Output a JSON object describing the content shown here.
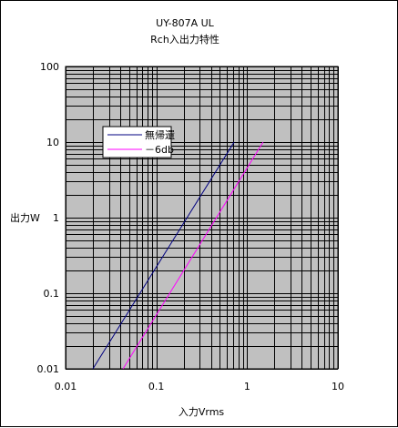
{
  "chart_data": {
    "type": "line",
    "title": "UY-807A UL",
    "subtitle": "Rch入出力特性",
    "xlabel": "入力Vrms",
    "ylabel": "出力W",
    "x_scale": "log",
    "y_scale": "log",
    "xlim": [
      0.01,
      10
    ],
    "ylim": [
      0.01,
      100
    ],
    "x_ticks": [
      "0.01",
      "0.1",
      "1",
      "10"
    ],
    "y_ticks": [
      "0.01",
      "0.1",
      "1",
      "10",
      "100"
    ],
    "grid": true,
    "legend_position": "upper-left",
    "plot_background": "#c0c0c0",
    "series": [
      {
        "name": "無帰還",
        "color": "#000080",
        "x": [
          0.02,
          0.72
        ],
        "y": [
          0.01,
          10
        ]
      },
      {
        "name": "－6db",
        "color": "#ff00ff",
        "x": [
          0.043,
          1.5
        ],
        "y": [
          0.01,
          10
        ]
      }
    ]
  }
}
